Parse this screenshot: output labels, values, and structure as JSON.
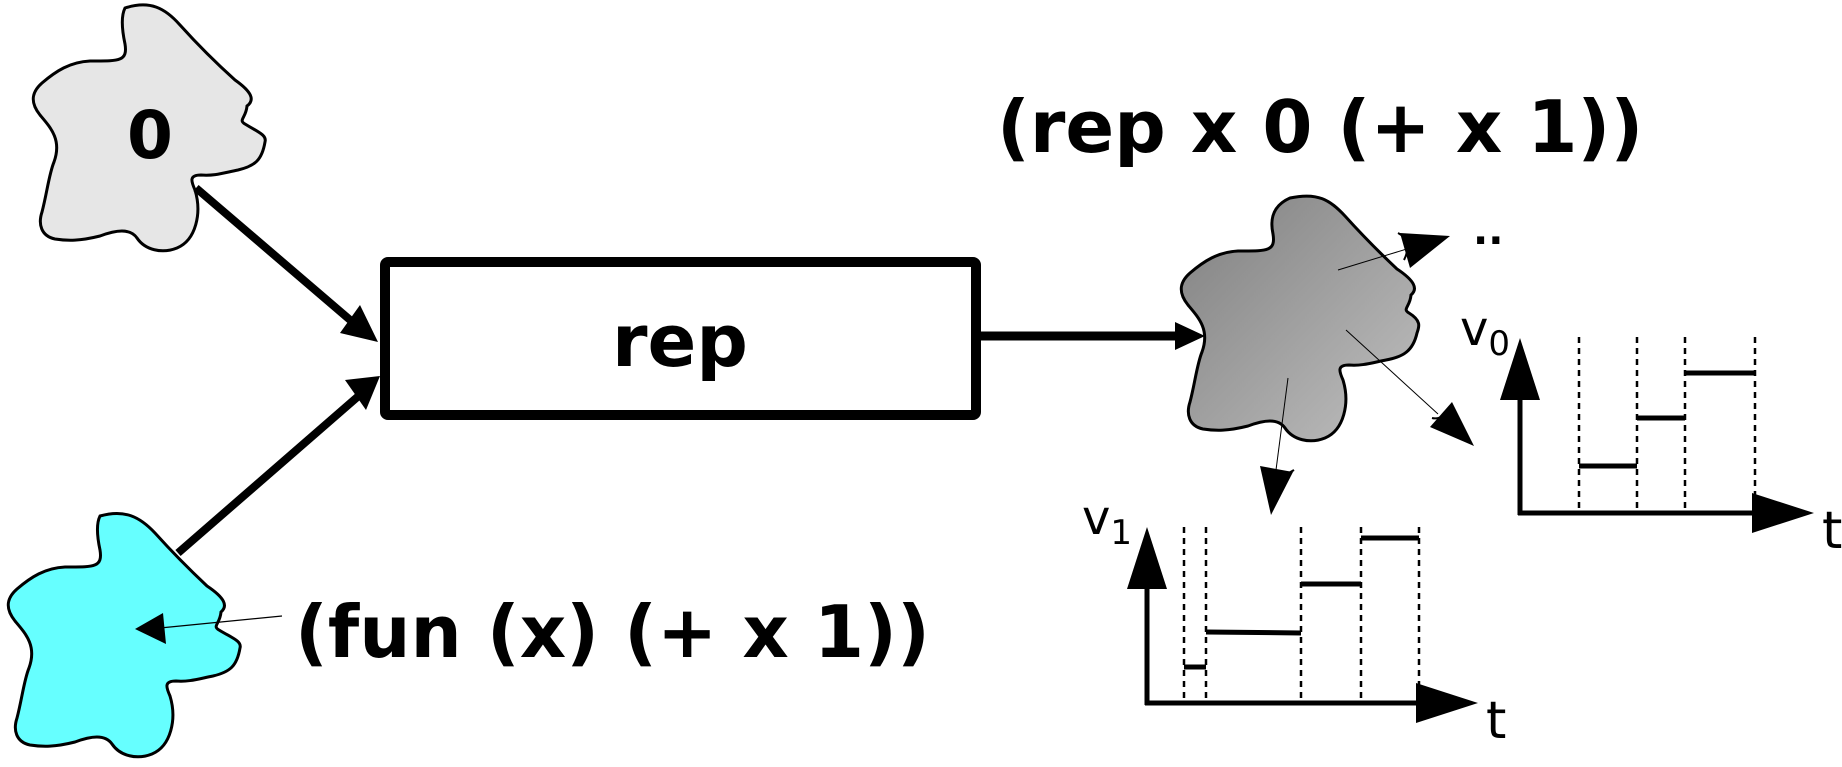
{
  "nodes": {
    "zero_blob": {
      "label": "0"
    },
    "rep_box": {
      "label": "rep"
    },
    "fun_blob": {
      "label": ""
    },
    "result_blob": {
      "label": ""
    }
  },
  "expressions": {
    "rep_expr": "(rep x 0 (+ x 1))",
    "fun_expr": "(fun (x) (+ x 1))",
    "ellipsis": ".."
  },
  "plots": {
    "plot_v0": {
      "ylabel": "v",
      "ysub": "0",
      "xlabel": "t",
      "steps": 3
    },
    "plot_v1": {
      "ylabel": "v",
      "ysub": "1",
      "xlabel": "t",
      "steps": 4
    }
  },
  "colors": {
    "zero_fill": "#e6e6e6",
    "fun_fill": "#66ffff",
    "result_fill_dark": "#808080",
    "result_fill_light": "#c0c0c0",
    "stroke": "#000000"
  }
}
